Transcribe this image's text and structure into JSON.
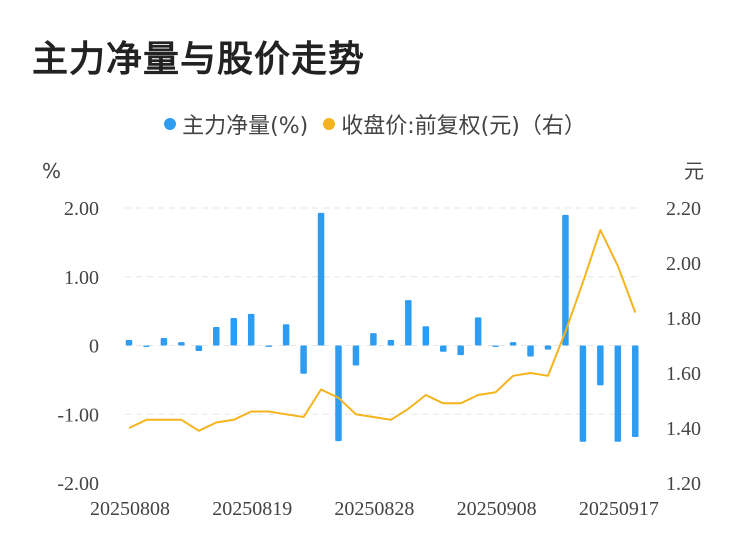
{
  "title": "主力净量与股价走势",
  "chart_data": {
    "type": "bar",
    "legend": [
      {
        "label": "主力净量(%)",
        "color": "#2e9cf0"
      },
      {
        "label": "收盘价:前复权(元)（右）",
        "color": "#f5b41e"
      }
    ],
    "left_unit": "%",
    "right_unit": "元",
    "left_ylim": [
      -2.0,
      2.0
    ],
    "right_ylim": [
      1.2,
      2.2
    ],
    "left_ticks": [
      "2.00",
      "1.00",
      "0",
      "-1.00",
      "-2.00"
    ],
    "right_ticks": [
      "2.20",
      "2.00",
      "1.80",
      "1.60",
      "1.40",
      "1.20"
    ],
    "x_tick_labels": [
      {
        "index": 0,
        "label": "20250808"
      },
      {
        "index": 7,
        "label": "20250819"
      },
      {
        "index": 14,
        "label": "20250828"
      },
      {
        "index": 21,
        "label": "20250908"
      },
      {
        "index": 28,
        "label": "20250917"
      }
    ],
    "series": [
      {
        "name": "主力净量(%)",
        "type": "bar",
        "axis": "left",
        "color": "#2e9cf0",
        "values": [
          0.08,
          -0.02,
          0.11,
          0.05,
          -0.08,
          0.27,
          0.4,
          0.46,
          -0.02,
          0.31,
          -0.41,
          1.93,
          -1.39,
          -0.29,
          0.18,
          0.08,
          0.66,
          0.28,
          -0.09,
          -0.14,
          0.41,
          -0.02,
          0.05,
          -0.16,
          -0.06,
          1.9,
          -1.4,
          -0.58,
          -1.4,
          -1.33
        ]
      },
      {
        "name": "收盘价:前复权(元)（右）",
        "type": "line",
        "axis": "right",
        "color": "#f5b41e",
        "values": [
          1.4,
          1.43,
          1.43,
          1.43,
          1.39,
          1.42,
          1.43,
          1.46,
          1.46,
          1.45,
          1.44,
          1.54,
          1.51,
          1.45,
          1.44,
          1.43,
          1.47,
          1.52,
          1.49,
          1.49,
          1.52,
          1.53,
          1.59,
          1.6,
          1.59,
          1.75,
          1.93,
          2.12,
          1.99,
          1.82
        ]
      }
    ]
  }
}
